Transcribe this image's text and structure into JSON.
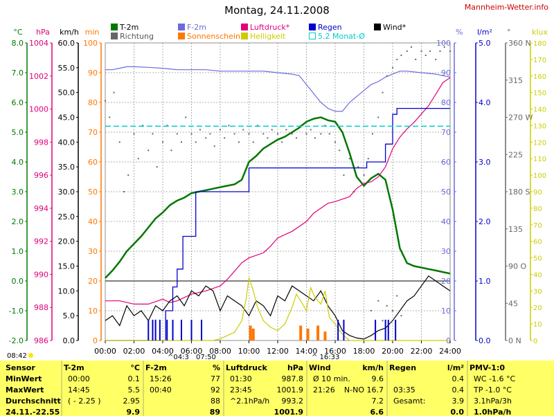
{
  "page": {
    "title": "Montag, 24.11.2008",
    "site": "Mannheim-Wetter.info"
  },
  "legend": [
    {
      "label": "T-2m",
      "color": "#007700"
    },
    {
      "label": "Richtung",
      "color": "#666666"
    },
    {
      "label": "F-2m",
      "color": "#6b6bdb"
    },
    {
      "label": "Sonnenschein",
      "color": "#ff7700"
    },
    {
      "label": "Luftdruck*",
      "color": "#e0007a"
    },
    {
      "label": "Helligkeit",
      "color": "#cccc00"
    },
    {
      "label": "Regen",
      "color": "#0000cc"
    },
    {
      "label": "5.2 Monat-Ø",
      "color": "#00cccc"
    },
    {
      "label": "Wind*",
      "color": "#000000"
    }
  ],
  "axes_units": {
    "temp": "°C",
    "press": "hPa",
    "wind": "km/h",
    "min": "min",
    "hum": "%",
    "rain": "l/m²",
    "dir": "°",
    "lux": "klux"
  },
  "chart_data": {
    "type": "line",
    "title": "Montag, 24.11.2008",
    "x_ticks": [
      "00:00",
      "02:00",
      "04:00",
      "06:00",
      "08:00",
      "10:00",
      "12:00",
      "14:00",
      "16:00",
      "18:00",
      "20:00",
      "22:00",
      "24:00"
    ],
    "xlim": [
      0,
      24
    ],
    "axes": {
      "temp": {
        "label": "°C",
        "ticks": [
          "8.0",
          "7.0",
          "6.0",
          "5.0",
          "4.0",
          "3.0",
          "2.0",
          "1.0",
          "0.0",
          "-1.0",
          "-2.0"
        ],
        "range": [
          -2,
          8
        ]
      },
      "press": {
        "label": "hPa",
        "ticks": [
          "1004",
          "1002",
          "1000",
          "998",
          "996",
          "994",
          "992",
          "990",
          "988",
          "986"
        ],
        "range": [
          986,
          1004
        ]
      },
      "wind": {
        "label": "km/h",
        "ticks": [
          "60.0",
          "55.0",
          "50.0",
          "45.0",
          "40.0",
          "35.0",
          "30.0",
          "25.0",
          "20.0",
          "15.0",
          "10.0",
          "5.0",
          "0.0"
        ],
        "range": [
          0,
          60
        ]
      },
      "minutes": {
        "label": "min",
        "ticks": [
          "100",
          "90",
          "80",
          "70",
          "60",
          "50",
          "40",
          "30",
          "20",
          "10",
          "0"
        ],
        "range": [
          0,
          100
        ]
      },
      "humidity": {
        "label": "%",
        "ticks": [
          "100",
          "90",
          "80",
          "70",
          "60",
          "50",
          "40",
          "30",
          "20",
          "10",
          "0"
        ],
        "range": [
          0,
          100
        ]
      },
      "rain": {
        "label": "l/m²",
        "ticks": [
          "5.0",
          "4.0",
          "3.0",
          "2.0",
          "1.0",
          "0.0"
        ],
        "range": [
          0,
          5
        ]
      },
      "direction": {
        "label": "°",
        "ticks": [
          "360 N",
          "315",
          "270 W",
          "225",
          "180 S",
          "135",
          "90 O",
          "45",
          "0 N"
        ],
        "range": [
          0,
          360
        ]
      },
      "lux": {
        "label": "klux",
        "ticks": [
          "180",
          "170",
          "160",
          "150",
          "140",
          "130",
          "120",
          "110",
          "100",
          "90",
          "80",
          "70",
          "60",
          "50",
          "40",
          "30",
          "20",
          "10",
          "0"
        ],
        "range": [
          0,
          180
        ]
      }
    },
    "series": [
      {
        "name": "T-2m",
        "axis": "temp",
        "color": "#007700",
        "x": [
          0,
          0.5,
          1,
          1.5,
          2,
          2.5,
          3,
          3.5,
          4,
          4.5,
          5,
          5.5,
          6,
          6.5,
          7,
          7.5,
          8,
          8.5,
          9,
          9.5,
          10,
          10.5,
          11,
          11.5,
          12,
          12.5,
          13,
          13.5,
          14,
          14.5,
          15,
          15.5,
          16,
          16.5,
          17,
          17.5,
          18,
          18.5,
          19,
          19.5,
          20,
          20.5,
          21,
          21.5,
          22,
          22.5,
          23,
          23.5,
          24
        ],
        "y": [
          0.1,
          0.35,
          0.65,
          1.0,
          1.25,
          1.5,
          1.8,
          2.1,
          2.3,
          2.55,
          2.7,
          2.8,
          2.95,
          3.0,
          3.05,
          3.1,
          3.15,
          3.2,
          3.25,
          3.4,
          4.0,
          4.2,
          4.45,
          4.6,
          4.75,
          4.85,
          5.0,
          5.15,
          5.35,
          5.45,
          5.5,
          5.4,
          5.35,
          5.0,
          4.3,
          3.5,
          3.2,
          3.45,
          3.6,
          3.4,
          2.4,
          1.1,
          0.6,
          0.5,
          0.45,
          0.4,
          0.35,
          0.3,
          0.25
        ]
      },
      {
        "name": "F-2m",
        "axis": "humidity",
        "color": "#6b6bdb",
        "x": [
          0,
          0.5,
          1,
          1.5,
          2,
          3,
          4,
          5,
          6,
          7,
          8,
          9,
          10,
          11,
          12,
          13,
          13.5,
          14,
          14.5,
          15,
          15.5,
          16,
          16.5,
          17,
          17.5,
          18,
          18.5,
          19,
          19.5,
          20,
          20.5,
          21,
          22,
          23,
          23.5,
          24
        ],
        "y": [
          91,
          91,
          91.5,
          92,
          92,
          91.8,
          91.5,
          91,
          91,
          91,
          90.5,
          90.5,
          90.5,
          90.5,
          90,
          89.5,
          89,
          86,
          83,
          80,
          78,
          77,
          77,
          80,
          82,
          84,
          86,
          87,
          88.5,
          89.5,
          90.5,
          90.5,
          90,
          89.5,
          89,
          88.5
        ]
      },
      {
        "name": "Luftdruck*",
        "axis": "press",
        "color": "#e0007a",
        "x": [
          0,
          1,
          2,
          3,
          4,
          4.5,
          5,
          6,
          7,
          8,
          8.5,
          9,
          9.5,
          10,
          11,
          11.5,
          12,
          12.5,
          13,
          14,
          14.5,
          15,
          15.5,
          16,
          17,
          17.5,
          18,
          18.5,
          19,
          19.5,
          20,
          20.5,
          21,
          21.5,
          22,
          22.5,
          23,
          23.5,
          24
        ],
        "y": [
          988.4,
          988.4,
          988.2,
          988.2,
          988.5,
          988.3,
          988.4,
          988.8,
          989.0,
          989.3,
          989.7,
          990.2,
          990.7,
          991.0,
          991.3,
          991.7,
          992.2,
          992.4,
          992.6,
          993.2,
          993.7,
          994.0,
          994.3,
          994.4,
          994.7,
          995.2,
          995.5,
          995.6,
          995.9,
          996.5,
          997.6,
          998.3,
          998.8,
          999.2,
          999.7,
          1000.2,
          1000.9,
          1001.6,
          1001.9
        ]
      },
      {
        "name": "Regen",
        "axis": "rain",
        "color": "#0000cc",
        "step": true,
        "x": [
          0,
          3.6,
          4.2,
          4.7,
          5.0,
          5.4,
          6.3,
          9.3,
          10.0,
          17.6,
          18.2,
          19.5,
          20.0,
          20.3,
          24
        ],
        "y": [
          0,
          0,
          0.5,
          0.9,
          1.2,
          1.75,
          2.5,
          2.5,
          2.9,
          2.9,
          3.0,
          3.3,
          3.8,
          3.9,
          3.9
        ]
      },
      {
        "name": "5.2 Monat-Ø",
        "axis": "rain",
        "color": "#00cccc",
        "dashed": true,
        "x": [
          0,
          24
        ],
        "y": [
          3.6,
          3.6
        ]
      },
      {
        "name": "Wind*",
        "axis": "wind",
        "color": "#000000",
        "x": [
          0,
          0.5,
          1,
          1.5,
          2,
          2.5,
          3,
          3.5,
          4,
          4.5,
          5,
          5.5,
          6,
          6.5,
          7,
          7.5,
          8,
          8.5,
          9,
          9.5,
          10,
          10.5,
          11,
          11.5,
          12,
          12.5,
          13,
          13.5,
          14,
          14.5,
          15,
          15.5,
          16,
          16.5,
          17,
          17.5,
          18,
          18.5,
          19,
          19.5,
          20,
          20.5,
          21,
          21.5,
          22,
          22.5,
          23,
          23.5,
          24
        ],
        "y": [
          4,
          5,
          3,
          7,
          5,
          6,
          4,
          7,
          6,
          8,
          9,
          7,
          10,
          9,
          11,
          10,
          6,
          9,
          8,
          7,
          5,
          8,
          7,
          5,
          9,
          8,
          11,
          10,
          9,
          8,
          10,
          7,
          5,
          2,
          1,
          0.5,
          0.3,
          1,
          2,
          2.5,
          4,
          6,
          8,
          9,
          11,
          13,
          12,
          11,
          10
        ]
      },
      {
        "name": "Helligkeit",
        "axis": "lux",
        "color": "#cccc00",
        "x": [
          0,
          7.5,
          8,
          8.5,
          9,
          9.5,
          9.8,
          10,
          10.3,
          10.6,
          11,
          11.5,
          12,
          12.5,
          13,
          13.3,
          13.6,
          14,
          14.3,
          14.6,
          15,
          15.3,
          15.6,
          16,
          16.3,
          16.6,
          17,
          24
        ],
        "y": [
          0,
          0,
          1,
          3,
          5,
          12,
          25,
          38,
          30,
          20,
          12,
          8,
          6,
          10,
          20,
          28,
          24,
          18,
          32,
          26,
          22,
          30,
          14,
          10,
          6,
          3,
          0,
          0
        ]
      },
      {
        "name": "Sonnenschein",
        "axis": "minutes",
        "color": "#ff7700",
        "bars": true,
        "x": [
          10.1,
          10.3,
          13.6,
          14.1,
          14.8,
          15.3
        ],
        "y": [
          5,
          4,
          5,
          4,
          5,
          3
        ]
      }
    ],
    "direction_points": [
      [
        0,
        290
      ],
      [
        0.3,
        270
      ],
      [
        0.6,
        300
      ],
      [
        1,
        240
      ],
      [
        1.3,
        180
      ],
      [
        1.6,
        200
      ],
      [
        2,
        250
      ],
      [
        2.3,
        220
      ],
      [
        2.6,
        260
      ],
      [
        3,
        230
      ],
      [
        3.3,
        250
      ],
      [
        3.6,
        210
      ],
      [
        4,
        240
      ],
      [
        4.3,
        260
      ],
      [
        4.6,
        230
      ],
      [
        5,
        250
      ],
      [
        5.3,
        240
      ],
      [
        5.6,
        270
      ],
      [
        6,
        250
      ],
      [
        6.3,
        240
      ],
      [
        6.6,
        255
      ],
      [
        7,
        245
      ],
      [
        7.3,
        250
      ],
      [
        7.6,
        235
      ],
      [
        8,
        255
      ],
      [
        8.3,
        245
      ],
      [
        8.6,
        260
      ],
      [
        9,
        250
      ],
      [
        9.3,
        240
      ],
      [
        9.6,
        255
      ],
      [
        10,
        250
      ],
      [
        10.3,
        240
      ],
      [
        10.6,
        260
      ],
      [
        11,
        250
      ],
      [
        11.3,
        245
      ],
      [
        11.6,
        255
      ],
      [
        12,
        250
      ],
      [
        12.3,
        240
      ],
      [
        12.6,
        255
      ],
      [
        13,
        250
      ],
      [
        13.3,
        245
      ],
      [
        13.6,
        260
      ],
      [
        14,
        250
      ],
      [
        14.3,
        255
      ],
      [
        14.6,
        245
      ],
      [
        15,
        250
      ],
      [
        15.3,
        260
      ],
      [
        15.6,
        250
      ],
      [
        16,
        240
      ],
      [
        16.3,
        230
      ],
      [
        16.6,
        200
      ],
      [
        17,
        220
      ],
      [
        17.3,
        180
      ],
      [
        17.6,
        210
      ],
      [
        18,
        200
      ],
      [
        18.3,
        220
      ],
      [
        18.6,
        250
      ],
      [
        19,
        270
      ],
      [
        19.3,
        300
      ],
      [
        19.6,
        320
      ],
      [
        20,
        330
      ],
      [
        20.3,
        340
      ],
      [
        20.6,
        345
      ],
      [
        21,
        350
      ],
      [
        21.3,
        355
      ],
      [
        21.6,
        340
      ],
      [
        22,
        350
      ],
      [
        22.3,
        345
      ],
      [
        22.6,
        350
      ],
      [
        23,
        340
      ],
      [
        23.3,
        350
      ],
      [
        23.6,
        355
      ],
      [
        24,
        350
      ]
    ],
    "wind_gust_points": [
      [
        18.5,
        6
      ],
      [
        19,
        8
      ],
      [
        19.3,
        4
      ],
      [
        19.6,
        7
      ],
      [
        20,
        6
      ],
      [
        20.3,
        9
      ],
      [
        20.6,
        5
      ]
    ],
    "markers": {
      "sunrise": "04:3",
      "sunset": "07:50",
      "sun2": "16:33",
      "time_left": "08:42"
    }
  },
  "table": {
    "rows": [
      [
        "Sensor",
        "MinWert",
        "MaxWert",
        "Durchschnitt",
        "24.11.-22.55"
      ],
      {
        "label": "T-2m",
        "unit": "°C",
        "cells": [
          [
            "00:00",
            "0.1"
          ],
          [
            "14:45",
            "5.5"
          ],
          [
            "( - 2.25 )",
            "2.95"
          ],
          [
            "",
            "9.9"
          ]
        ]
      },
      {
        "label": "F-2m",
        "unit": "%",
        "cells": [
          [
            "15:26",
            "77"
          ],
          [
            "00:40",
            "92"
          ],
          [
            "",
            "88"
          ],
          [
            "",
            "89"
          ]
        ]
      },
      {
        "label": "Luftdruck",
        "unit": "hPa",
        "cells": [
          [
            "01:30",
            "987.8"
          ],
          [
            "23:45",
            "1001.9"
          ],
          [
            "^2.1hPa/h",
            "993.2"
          ],
          [
            "",
            "1001.9"
          ]
        ]
      },
      {
        "label": "Wind",
        "unit": "km/h",
        "cells": [
          [
            "Ø 10 min.",
            "9.6"
          ],
          [
            "21:26",
            "N-NO 16.7"
          ],
          [
            "",
            "7.2"
          ],
          [
            "",
            "6.6"
          ]
        ]
      },
      {
        "label": "Regen",
        "unit": "l/m²",
        "cells": [
          [
            "",
            "0.4"
          ],
          [
            "03:35",
            "0.4"
          ],
          [
            "Gesamt:",
            "3.9"
          ],
          [
            "",
            "0.0"
          ]
        ]
      },
      {
        "label": "PMV-1:0",
        "unit": "",
        "cells": [
          [
            "WC -1.6 °C",
            ""
          ],
          [
            "TP -1.0 °C",
            ""
          ],
          [
            "3.1hPa/3h",
            ""
          ],
          [
            "1.0hPa/h",
            ""
          ]
        ]
      }
    ]
  }
}
